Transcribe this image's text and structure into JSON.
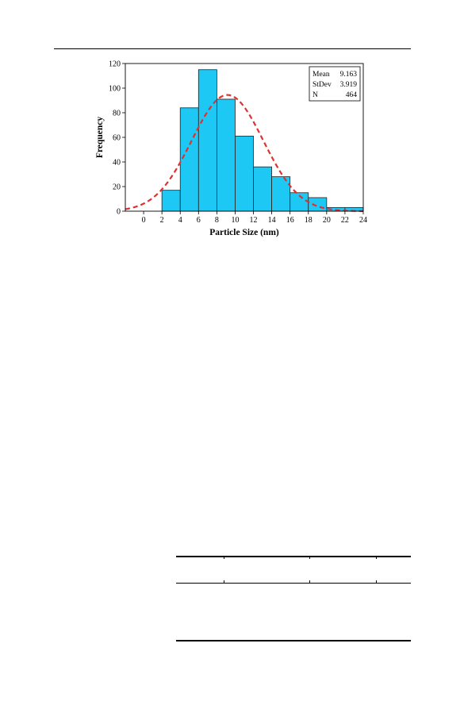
{
  "chart_data": {
    "type": "bar",
    "title": "",
    "xlabel": "Particle Size (nm)",
    "ylabel": "Frequency",
    "xlim": [
      -2,
      24
    ],
    "ylim": [
      0,
      120
    ],
    "xticks": [
      0,
      2,
      4,
      6,
      8,
      10,
      12,
      14,
      16,
      18,
      20,
      22,
      24
    ],
    "yticks": [
      0,
      20,
      40,
      60,
      80,
      100,
      120
    ],
    "bin_width": 2,
    "bins": [
      {
        "start": 2,
        "end": 4,
        "value": 17
      },
      {
        "start": 4,
        "end": 6,
        "value": 84
      },
      {
        "start": 6,
        "end": 8,
        "value": 115
      },
      {
        "start": 8,
        "end": 10,
        "value": 91
      },
      {
        "start": 10,
        "end": 12,
        "value": 61
      },
      {
        "start": 12,
        "end": 14,
        "value": 36
      },
      {
        "start": 14,
        "end": 16,
        "value": 28
      },
      {
        "start": 16,
        "end": 18,
        "value": 15
      },
      {
        "start": 18,
        "end": 20,
        "value": 11
      },
      {
        "start": 20,
        "end": 22,
        "value": 3
      },
      {
        "start": 22,
        "end": 24,
        "value": 3
      }
    ],
    "fit_curve": {
      "type": "normal",
      "style": "dashed",
      "color": "#e03030"
    },
    "stats": [
      {
        "label": "Mean",
        "value": "9.163"
      },
      {
        "label": "StDev",
        "value": "3.919"
      },
      {
        "label": "N",
        "value": "464"
      }
    ],
    "stats_box_placement": "top-right",
    "grid": false,
    "colors": {
      "bar_fill": "#1ec8f5",
      "bar_edge": "#222222",
      "fit_line": "#e03030"
    }
  }
}
